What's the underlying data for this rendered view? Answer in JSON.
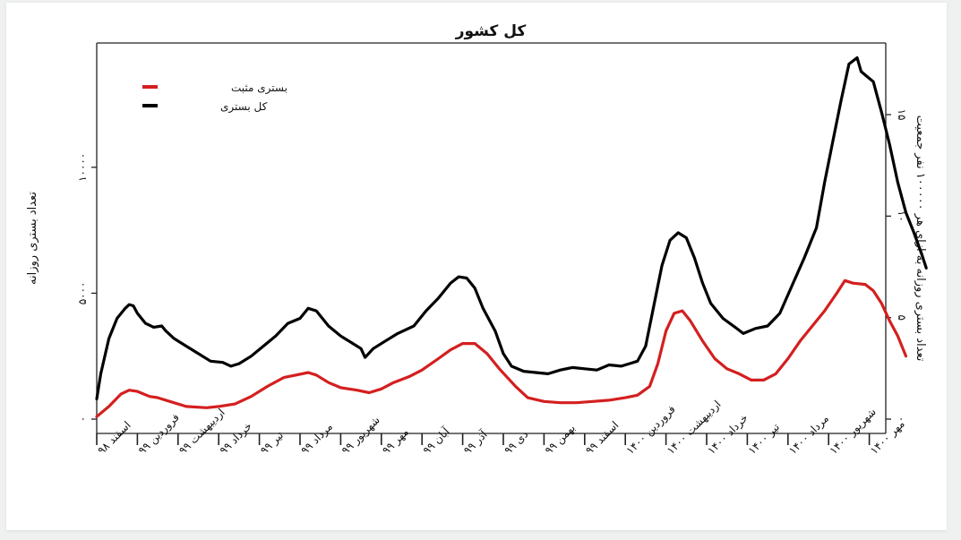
{
  "chart_data": {
    "type": "line",
    "title": "کل کشور",
    "ylabel": "تعداد بستری روزانه",
    "ylabel_right": "تعداد بستری روزانه به ازای هر ۱۰۰۰۰۰ نفر جمعیت",
    "xlabel": "",
    "ylim": [
      0,
      15500
    ],
    "ylim_right": [
      0,
      17.5
    ],
    "yticks": [
      0,
      5000,
      10000
    ],
    "ytick_labels": [
      "۰",
      "۵۰۰۰",
      "۱۰۰۰۰"
    ],
    "yticks_right": [
      0,
      5,
      10,
      15
    ],
    "ytick_labels_right": [
      "۰",
      "۵",
      "۱۰",
      "۱۵"
    ],
    "grid": false,
    "legend_position": "top-left",
    "categories": [
      "اسفند ۹۸",
      "فروردین ۹۹",
      "اردیبهشت ۹۹",
      "خرداد ۹۹",
      "تیر ۹۹",
      "مرداد ۹۹",
      "شهریور ۹۹",
      "مهر ۹۹",
      "آبان ۹۹",
      "آذر ۹۹",
      "دی ۹۹",
      "بهمن ۹۹",
      "اسفند ۹۹",
      "فروردین ۱۴۰۰",
      "اردیبهشت ۱۴۰۰",
      "خرداد ۱۴۰۰",
      "تیر ۱۴۰۰",
      "مرداد ۱۴۰۰",
      "شهریور ۱۴۰۰",
      "مهر ۱۴۰۰"
    ],
    "series": [
      {
        "name": "بستری مثبت",
        "color": "#d41f1f",
        "points": [
          [
            0,
            100
          ],
          [
            0.3,
            500
          ],
          [
            0.6,
            1000
          ],
          [
            0.8,
            1150
          ],
          [
            1.0,
            1100
          ],
          [
            1.3,
            900
          ],
          [
            1.5,
            850
          ],
          [
            1.8,
            700
          ],
          [
            2.2,
            500
          ],
          [
            2.7,
            450
          ],
          [
            3.0,
            500
          ],
          [
            3.4,
            600
          ],
          [
            3.8,
            900
          ],
          [
            4.2,
            1300
          ],
          [
            4.6,
            1650
          ],
          [
            4.9,
            1750
          ],
          [
            5.2,
            1850
          ],
          [
            5.4,
            1750
          ],
          [
            5.7,
            1450
          ],
          [
            6.0,
            1250
          ],
          [
            6.4,
            1150
          ],
          [
            6.7,
            1050
          ],
          [
            7.0,
            1200
          ],
          [
            7.3,
            1450
          ],
          [
            7.7,
            1700
          ],
          [
            8.0,
            1950
          ],
          [
            8.4,
            2400
          ],
          [
            8.7,
            2750
          ],
          [
            9.0,
            3000
          ],
          [
            9.3,
            3000
          ],
          [
            9.6,
            2600
          ],
          [
            9.9,
            2000
          ],
          [
            10.3,
            1300
          ],
          [
            10.6,
            850
          ],
          [
            11.0,
            700
          ],
          [
            11.4,
            650
          ],
          [
            11.8,
            650
          ],
          [
            12.2,
            700
          ],
          [
            12.6,
            750
          ],
          [
            13.0,
            850
          ],
          [
            13.3,
            950
          ],
          [
            13.6,
            1300
          ],
          [
            13.8,
            2200
          ],
          [
            14.0,
            3500
          ],
          [
            14.2,
            4200
          ],
          [
            14.4,
            4300
          ],
          [
            14.6,
            3900
          ],
          [
            14.9,
            3100
          ],
          [
            15.2,
            2400
          ],
          [
            15.5,
            2000
          ],
          [
            15.8,
            1800
          ],
          [
            16.1,
            1550
          ],
          [
            16.4,
            1550
          ],
          [
            16.7,
            1800
          ],
          [
            17.0,
            2400
          ],
          [
            17.3,
            3100
          ],
          [
            17.6,
            3700
          ],
          [
            17.9,
            4300
          ],
          [
            18.2,
            5000
          ],
          [
            18.4,
            5500
          ],
          [
            18.6,
            5400
          ],
          [
            18.9,
            5350
          ],
          [
            19.1,
            5100
          ],
          [
            19.3,
            4600
          ],
          [
            19.5,
            3900
          ],
          [
            19.7,
            3300
          ],
          [
            19.9,
            2500
          ]
        ]
      },
      {
        "name": "کل بستری",
        "color": "#000000",
        "points": [
          [
            0,
            800
          ],
          [
            0.1,
            1800
          ],
          [
            0.3,
            3200
          ],
          [
            0.5,
            4000
          ],
          [
            0.7,
            4400
          ],
          [
            0.8,
            4550
          ],
          [
            0.9,
            4500
          ],
          [
            1.0,
            4200
          ],
          [
            1.2,
            3800
          ],
          [
            1.4,
            3650
          ],
          [
            1.6,
            3700
          ],
          [
            1.7,
            3500
          ],
          [
            1.9,
            3200
          ],
          [
            2.2,
            2900
          ],
          [
            2.5,
            2600
          ],
          [
            2.8,
            2300
          ],
          [
            3.1,
            2250
          ],
          [
            3.3,
            2100
          ],
          [
            3.5,
            2200
          ],
          [
            3.8,
            2500
          ],
          [
            4.1,
            2900
          ],
          [
            4.4,
            3300
          ],
          [
            4.7,
            3800
          ],
          [
            5.0,
            4000
          ],
          [
            5.2,
            4400
          ],
          [
            5.4,
            4300
          ],
          [
            5.7,
            3700
          ],
          [
            6.0,
            3300
          ],
          [
            6.3,
            3000
          ],
          [
            6.5,
            2800
          ],
          [
            6.6,
            2450
          ],
          [
            6.8,
            2800
          ],
          [
            7.1,
            3100
          ],
          [
            7.4,
            3400
          ],
          [
            7.8,
            3700
          ],
          [
            8.1,
            4300
          ],
          [
            8.4,
            4800
          ],
          [
            8.7,
            5400
          ],
          [
            8.9,
            5650
          ],
          [
            9.1,
            5600
          ],
          [
            9.3,
            5200
          ],
          [
            9.5,
            4400
          ],
          [
            9.8,
            3500
          ],
          [
            10.0,
            2600
          ],
          [
            10.2,
            2100
          ],
          [
            10.5,
            1900
          ],
          [
            10.8,
            1850
          ],
          [
            11.1,
            1800
          ],
          [
            11.4,
            1950
          ],
          [
            11.7,
            2050
          ],
          [
            12.0,
            2000
          ],
          [
            12.3,
            1950
          ],
          [
            12.6,
            2150
          ],
          [
            12.9,
            2100
          ],
          [
            13.1,
            2200
          ],
          [
            13.3,
            2300
          ],
          [
            13.5,
            2900
          ],
          [
            13.7,
            4500
          ],
          [
            13.9,
            6100
          ],
          [
            14.1,
            7100
          ],
          [
            14.3,
            7400
          ],
          [
            14.5,
            7200
          ],
          [
            14.7,
            6400
          ],
          [
            14.9,
            5400
          ],
          [
            15.1,
            4600
          ],
          [
            15.4,
            4000
          ],
          [
            15.7,
            3650
          ],
          [
            15.9,
            3400
          ],
          [
            16.2,
            3600
          ],
          [
            16.5,
            3700
          ],
          [
            16.8,
            4200
          ],
          [
            17.1,
            5300
          ],
          [
            17.4,
            6400
          ],
          [
            17.7,
            7600
          ],
          [
            17.9,
            9400
          ],
          [
            18.1,
            11000
          ],
          [
            18.3,
            12600
          ],
          [
            18.5,
            14100
          ],
          [
            18.7,
            14350
          ],
          [
            18.8,
            13800
          ],
          [
            18.95,
            13600
          ],
          [
            19.1,
            13400
          ],
          [
            19.3,
            12200
          ],
          [
            19.5,
            10900
          ],
          [
            19.7,
            9400
          ],
          [
            19.9,
            8200
          ],
          [
            20.1,
            7400
          ],
          [
            20.3,
            6500
          ],
          [
            20.4,
            6000
          ]
        ]
      }
    ]
  },
  "legend": [
    {
      "label": "بستری مثبت",
      "color": "#d41f1f"
    },
    {
      "label": "کل بستری",
      "color": "#000000"
    }
  ],
  "colors": {
    "page_bg": "#eef1f0",
    "card_bg": "#ffffff",
    "positive": "#d41f1f",
    "total": "#000000"
  }
}
